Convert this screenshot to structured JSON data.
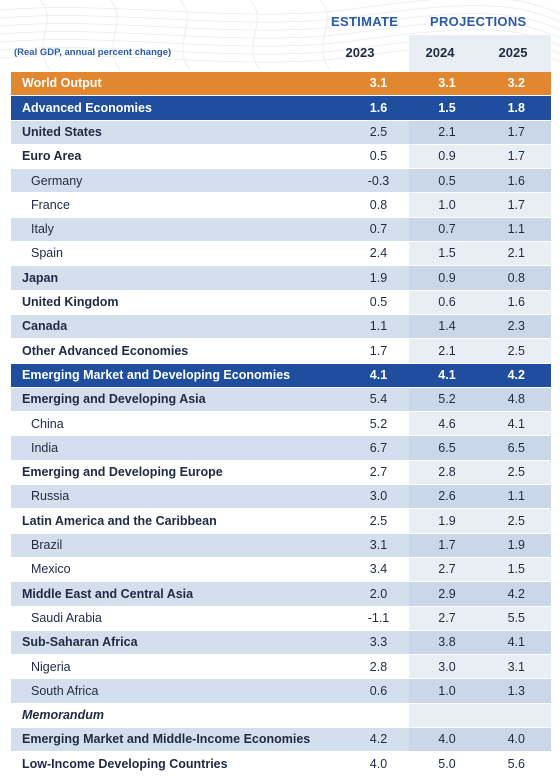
{
  "header": {
    "estimate_label": "ESTIMATE",
    "projections_label": "PROJECTIONS",
    "note": "(Real GDP, annual percent change)",
    "years": [
      "2023",
      "2024",
      "2025"
    ]
  },
  "colors": {
    "world_row": "#e0872f",
    "group_row": "#1f4e9e",
    "header_text": "#2a5aa8"
  },
  "rows": [
    {
      "label": "World Output",
      "v": [
        "3.1",
        "3.1",
        "3.2"
      ],
      "style": "orange"
    },
    {
      "label": "Advanced Economies",
      "v": [
        "1.6",
        "1.5",
        "1.8"
      ],
      "style": "navy"
    },
    {
      "label": "United States",
      "v": [
        "2.5",
        "2.1",
        "1.7"
      ],
      "style": "shade bold"
    },
    {
      "label": "Euro Area",
      "v": [
        "0.5",
        "0.9",
        "1.7"
      ],
      "style": "white bold"
    },
    {
      "label": "Germany",
      "v": [
        "-0.3",
        "0.5",
        "1.6"
      ],
      "style": "shade sub"
    },
    {
      "label": "France",
      "v": [
        "0.8",
        "1.0",
        "1.7"
      ],
      "style": "white sub"
    },
    {
      "label": "Italy",
      "v": [
        "0.7",
        "0.7",
        "1.1"
      ],
      "style": "shade sub"
    },
    {
      "label": "Spain",
      "v": [
        "2.4",
        "1.5",
        "2.1"
      ],
      "style": "white sub"
    },
    {
      "label": "Japan",
      "v": [
        "1.9",
        "0.9",
        "0.8"
      ],
      "style": "shade bold"
    },
    {
      "label": "United Kingdom",
      "v": [
        "0.5",
        "0.6",
        "1.6"
      ],
      "style": "white bold"
    },
    {
      "label": "Canada",
      "v": [
        "1.1",
        "1.4",
        "2.3"
      ],
      "style": "shade bold"
    },
    {
      "label": "Other Advanced Economies",
      "v": [
        "1.7",
        "2.1",
        "2.5"
      ],
      "style": "white bold"
    },
    {
      "label": "Emerging Market and Developing Economies",
      "v": [
        "4.1",
        "4.1",
        "4.2"
      ],
      "style": "navy"
    },
    {
      "label": "Emerging and Developing Asia",
      "v": [
        "5.4",
        "5.2",
        "4.8"
      ],
      "style": "shade bold"
    },
    {
      "label": "China",
      "v": [
        "5.2",
        "4.6",
        "4.1"
      ],
      "style": "white sub"
    },
    {
      "label": "India",
      "v": [
        "6.7",
        "6.5",
        "6.5"
      ],
      "style": "shade sub"
    },
    {
      "label": "Emerging and Developing Europe",
      "v": [
        "2.7",
        "2.8",
        "2.5"
      ],
      "style": "white bold"
    },
    {
      "label": "Russia",
      "v": [
        "3.0",
        "2.6",
        "1.1"
      ],
      "style": "shade sub"
    },
    {
      "label": "Latin America and the Caribbean",
      "v": [
        "2.5",
        "1.9",
        "2.5"
      ],
      "style": "white bold"
    },
    {
      "label": "Brazil",
      "v": [
        "3.1",
        "1.7",
        "1.9"
      ],
      "style": "shade sub"
    },
    {
      "label": "Mexico",
      "v": [
        "3.4",
        "2.7",
        "1.5"
      ],
      "style": "white sub"
    },
    {
      "label": "Middle East and Central Asia",
      "v": [
        "2.0",
        "2.9",
        "4.2"
      ],
      "style": "shade bold"
    },
    {
      "label": "Saudi Arabia",
      "v": [
        "-1.1",
        "2.7",
        "5.5"
      ],
      "style": "white sub"
    },
    {
      "label": "Sub-Saharan Africa",
      "v": [
        "3.3",
        "3.8",
        "4.1"
      ],
      "style": "shade bold"
    },
    {
      "label": "Nigeria",
      "v": [
        "2.8",
        "3.0",
        "3.1"
      ],
      "style": "white sub"
    },
    {
      "label": "South Africa",
      "v": [
        "0.6",
        "1.0",
        "1.3"
      ],
      "style": "shade sub"
    },
    {
      "label": "Memorandum",
      "v": [
        "",
        "",
        ""
      ],
      "style": "white memo"
    },
    {
      "label": "Emerging Market and Middle-Income Economies",
      "v": [
        "4.2",
        "4.0",
        "4.0"
      ],
      "style": "shade bold"
    },
    {
      "label": "Low-Income Developing Countries",
      "v": [
        "4.0",
        "5.0",
        "5.6"
      ],
      "style": "white bold"
    }
  ]
}
